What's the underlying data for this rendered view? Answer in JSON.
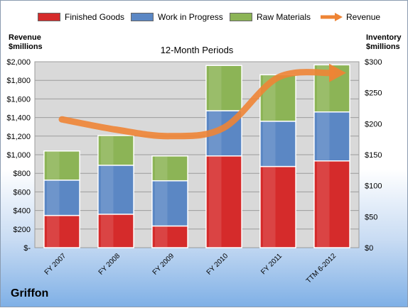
{
  "chart_data": {
    "type": "bar",
    "stacked": true,
    "subtitle": "12-Month Periods",
    "company": "Griffon",
    "left_axis_title": [
      "Revenue",
      "$millions"
    ],
    "right_axis_title": [
      "Inventory",
      "$millions"
    ],
    "categories": [
      "FY 2007",
      "FY 2008",
      "FY 2009",
      "FY 2010",
      "FY 2011",
      "TTM 6-2012"
    ],
    "series": [
      {
        "name": "Finished Goods",
        "axis": "right",
        "color": "#d52b2b",
        "values": [
          52,
          54,
          35,
          148,
          131,
          140
        ]
      },
      {
        "name": "Work in Progress",
        "axis": "right",
        "color": "#5b87c4",
        "values": [
          57,
          79,
          73,
          73,
          73,
          79
        ]
      },
      {
        "name": "Raw Materials",
        "axis": "right",
        "color": "#8cb456",
        "values": [
          47,
          48,
          40,
          73,
          75,
          76
        ]
      },
      {
        "name": "Revenue",
        "axis": "left",
        "type": "line",
        "color": "#ee8435",
        "values": [
          1380,
          1270,
          1200,
          1290,
          1830,
          1880
        ]
      }
    ],
    "left_axis": {
      "min": 0,
      "max": 2000,
      "step": 200,
      "tick_labels": [
        "$-",
        "$200",
        "$400",
        "$600",
        "$800",
        "$1,000",
        "$1,200",
        "$1,400",
        "$1,600",
        "$1,800",
        "$2,000"
      ]
    },
    "right_axis": {
      "min": 0,
      "max": 300,
      "step": 50,
      "tick_labels": [
        "$0",
        "$50",
        "$100",
        "$150",
        "$200",
        "$250",
        "$300"
      ]
    },
    "grid": true,
    "legend_position": "top"
  }
}
